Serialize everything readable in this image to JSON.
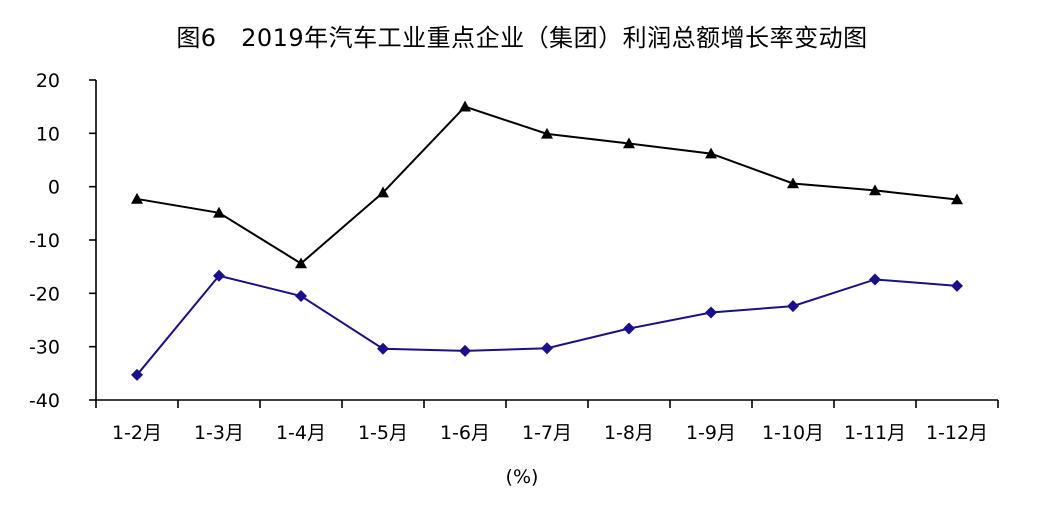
{
  "chart_data": {
    "type": "line",
    "title": "图6　2019年汽车工业重点企业（集团）利润总额增长率变动图",
    "categories": [
      "1-2月",
      "1-3月",
      "1-4月",
      "1-5月",
      "1-6月",
      "1-7月",
      "1-8月",
      "1-9月",
      "1-10月",
      "1-11月",
      "1-12月"
    ],
    "series": [
      {
        "marker": "triangle",
        "color": "#000000",
        "values": [
          -2.3,
          -4.9,
          -14.4,
          -1.1,
          15.0,
          9.9,
          8.1,
          6.2,
          0.6,
          -0.7,
          -2.4
        ]
      },
      {
        "marker": "diamond",
        "color": "#1a0f8c",
        "values": [
          -35.3,
          -16.7,
          -20.5,
          -30.4,
          -30.8,
          -30.3,
          -26.6,
          -23.6,
          -22.4,
          -17.4,
          -18.6
        ]
      }
    ],
    "yticks": [
      20,
      10,
      0,
      -10,
      -20,
      -30,
      -40
    ],
    "ylim": [
      -40,
      20
    ],
    "xlabel": "(%)",
    "ylabel": "",
    "grid": false,
    "legend": "none"
  }
}
